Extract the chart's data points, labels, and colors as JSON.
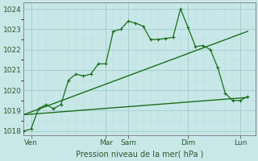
{
  "background_color": "#c8e8e8",
  "grid_color_major": "#a8d0d0",
  "grid_color_minor": "#b8dcdc",
  "line_color": "#1a6e1a",
  "ylim": [
    1017.8,
    1024.3
  ],
  "xlim": [
    0,
    31
  ],
  "ylabel_text": "Pression niveau de la mer( hPa )",
  "yticks": [
    1018,
    1019,
    1020,
    1021,
    1022,
    1023,
    1024
  ],
  "xtick_labels": [
    "Ven",
    "Mar",
    "Sam",
    "Dim",
    "Lun"
  ],
  "xtick_positions": [
    1,
    11,
    14,
    22,
    29
  ],
  "vline_positions": [
    1,
    11,
    14,
    22,
    29
  ],
  "series_main": {
    "x": [
      0,
      1,
      2,
      3,
      4,
      5,
      6,
      7,
      8,
      9,
      10,
      11,
      12,
      13,
      14,
      15,
      16,
      17,
      18,
      19,
      20,
      21,
      22,
      23,
      24,
      25,
      26,
      27,
      28,
      29,
      30
    ],
    "y": [
      1018.0,
      1018.1,
      1019.1,
      1019.3,
      1019.1,
      1019.3,
      1020.5,
      1020.8,
      1020.7,
      1020.8,
      1021.3,
      1021.3,
      1022.9,
      1023.0,
      1023.4,
      1023.3,
      1023.15,
      1022.5,
      1022.5,
      1022.55,
      1022.6,
      1024.0,
      1023.1,
      1022.15,
      1022.2,
      1022.0,
      1021.1,
      1019.85,
      1019.5,
      1019.5,
      1019.7
    ]
  },
  "trend_low": {
    "x": [
      0,
      30
    ],
    "y": [
      1018.8,
      1019.65
    ]
  },
  "trend_high": {
    "x": [
      0,
      30
    ],
    "y": [
      1018.8,
      1022.9
    ]
  }
}
